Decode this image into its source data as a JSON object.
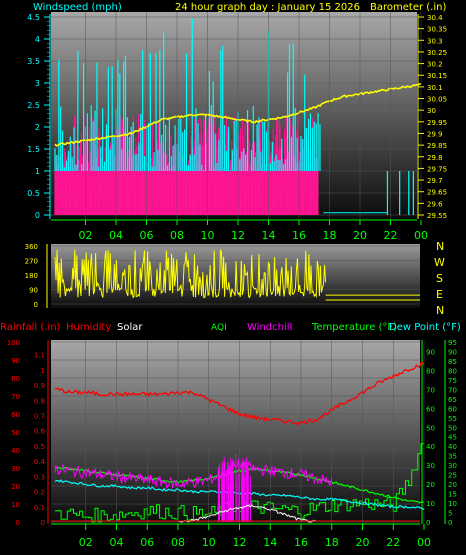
{
  "header": {
    "left": "Windspeed (mph)",
    "center": "24 hour graph day : January 15 2026",
    "right": "Barometer (.in)"
  },
  "colors": {
    "wind": "#00ffff",
    "gust": "#ff1493",
    "baro": "#ffff00",
    "dir": "#ffff00",
    "humidity": "#ff0000",
    "solar": "#ffffff",
    "aqi": "#00ff00",
    "windchill": "#ff00ff",
    "temp": "#00ff00",
    "dew": "#00ffff",
    "rain": "#ff0000",
    "hour": "#00ff00",
    "baro_axis": "#ffff00",
    "wind_axis": "#00ffff"
  },
  "hour_labels": [
    "02",
    "04",
    "06",
    "08",
    "10",
    "12",
    "14",
    "16",
    "18",
    "20",
    "22",
    "00"
  ],
  "compass": [
    "N",
    "W",
    "S",
    "E",
    "N"
  ],
  "bottom_legend": {
    "rain": "Rainfall (.in)",
    "humidity": "Humidity",
    "solar": "Solar",
    "aqi": "AQI",
    "windchill": "Windchill",
    "temp": "Temperature (°F)",
    "dew": "Dew Point (°F)"
  },
  "chart_data": [
    {
      "type": "bar",
      "name": "wind",
      "ylabel_left": "Windspeed (mph)",
      "ylabel_right": "Barometer (.in)",
      "ylim_left": [
        0,
        4.5
      ],
      "yticks_left": [
        "0",
        "0.5",
        "1",
        "1.5",
        "2",
        "2.5",
        "3",
        "3.5",
        "4",
        "4.5"
      ],
      "ylim_right": [
        29.55,
        30.4
      ],
      "yticks_right": [
        "29.55",
        "29.6",
        "29.65",
        "29.7",
        "29.75",
        "29.8",
        "29.85",
        "29.9",
        "29.95",
        "30",
        "30.05",
        "30.1",
        "30.15",
        "30.2",
        "30.25",
        "30.3",
        "30.35",
        "30.4"
      ],
      "barometer": {
        "hours": [
          0,
          1,
          2,
          3,
          4,
          5,
          6,
          7,
          8,
          9,
          10,
          11,
          12,
          13,
          14,
          15,
          16,
          17,
          18,
          19,
          20,
          21,
          22,
          23,
          24
        ],
        "values": [
          29.85,
          29.86,
          29.87,
          29.88,
          29.89,
          29.9,
          29.93,
          29.96,
          29.97,
          29.98,
          29.98,
          29.97,
          29.96,
          29.95,
          29.96,
          29.97,
          29.99,
          30.01,
          30.04,
          30.06,
          30.07,
          30.08,
          30.09,
          30.1,
          30.11
        ]
      }
    },
    {
      "type": "line",
      "name": "wind direction",
      "yticks": [
        "0",
        "90",
        "180",
        "270",
        "360"
      ],
      "ylim": [
        0,
        360
      ]
    },
    {
      "type": "line",
      "name": "temperature and humidity",
      "ylim_left": [
        0,
        100
      ],
      "yticks_left": [
        "0",
        "10",
        "20",
        "30",
        "40",
        "50",
        "60",
        "70",
        "80",
        "90",
        "100"
      ],
      "rain_ticks": [
        "0",
        "0.1",
        "0.2",
        "0.3",
        "0.4",
        "0.5",
        "0.6",
        "0.7",
        "0.8",
        "0.9",
        "1",
        "1.1"
      ],
      "ylim_right": [
        0,
        95
      ],
      "yticks_right": [
        "0",
        "5",
        "10",
        "15",
        "20",
        "25",
        "30",
        "35",
        "40",
        "45",
        "50",
        "55",
        "60",
        "65",
        "70",
        "75",
        "80",
        "85",
        "90",
        "95"
      ],
      "yticks_inner": [
        "0",
        "10",
        "20",
        "30",
        "40",
        "50",
        "60",
        "70",
        "80",
        "90"
      ],
      "humidity": {
        "hours": [
          0,
          1,
          2,
          3,
          4,
          5,
          6,
          7,
          8,
          9,
          10,
          11,
          12,
          13,
          14,
          15,
          16,
          17,
          18,
          19,
          20,
          21,
          22,
          23,
          24
        ],
        "values": [
          74,
          72,
          72,
          71,
          71,
          71,
          71,
          71,
          72,
          72,
          68,
          64,
          60,
          58,
          57,
          56,
          55,
          57,
          62,
          67,
          72,
          77,
          81,
          85,
          88
        ]
      },
      "temperature": {
        "hours": [
          0,
          1,
          2,
          3,
          4,
          5,
          6,
          7,
          8,
          9,
          10,
          11,
          12,
          13,
          14,
          15,
          16,
          17,
          18,
          19,
          20,
          21,
          22,
          23,
          24
        ],
        "values": [
          29,
          28,
          27,
          26,
          25,
          24,
          23,
          22,
          21,
          22,
          23,
          25,
          27,
          28,
          27,
          26,
          25,
          23,
          21,
          19,
          17,
          15,
          13,
          11,
          10
        ]
      },
      "dew_point": {
        "hours": [
          0,
          1,
          2,
          3,
          4,
          5,
          6,
          7,
          8,
          9,
          10,
          11,
          12,
          13,
          14,
          15,
          16,
          17,
          18,
          19,
          20,
          21,
          22,
          23,
          24
        ],
        "values": [
          22,
          21,
          20,
          19,
          19,
          18,
          18,
          17,
          17,
          16,
          16,
          16,
          15,
          15,
          14,
          14,
          13,
          12,
          12,
          11,
          10,
          9,
          8,
          8,
          7
        ]
      },
      "solar": {
        "hours": [
          8,
          9,
          10,
          11,
          12,
          13,
          14,
          15,
          16,
          17
        ],
        "values": [
          0,
          1,
          3,
          6,
          8,
          9,
          7,
          4,
          1,
          0
        ]
      },
      "aqi": {
        "hours": [
          0,
          2,
          4,
          6,
          8,
          10,
          12,
          14,
          16,
          18,
          20,
          22,
          23,
          24
        ],
        "values": [
          5,
          3,
          4,
          6,
          5,
          4,
          9,
          7,
          6,
          9,
          10,
          9,
          22,
          45
        ]
      },
      "windchill": {
        "hours": [
          0,
          1,
          2,
          3,
          4,
          5,
          6,
          7,
          8,
          9,
          10,
          11,
          12,
          13,
          14,
          15,
          16,
          17,
          18
        ],
        "values": [
          28,
          27,
          26,
          25,
          24,
          23,
          22,
          21,
          20,
          21,
          22,
          26,
          30,
          28,
          27,
          26,
          25,
          23,
          21
        ]
      }
    }
  ]
}
